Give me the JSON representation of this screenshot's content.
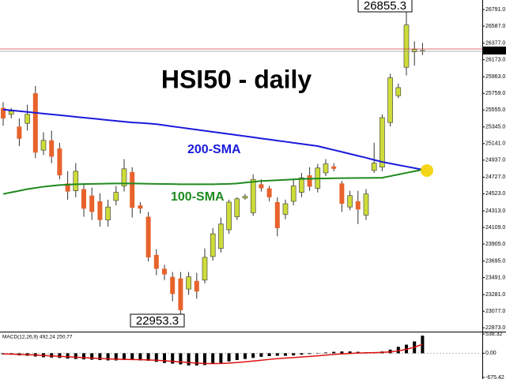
{
  "chart_data": {
    "type": "candlestick",
    "title": "HSI50 - daily",
    "up_color": "#cddc39",
    "down_color": "#e8622c",
    "open": [
      25580,
      25500,
      25350,
      25390,
      25760,
      25060,
      25180,
      25080,
      24650,
      24560,
      24580,
      24500,
      24430,
      24200,
      24440,
      24620,
      24790,
      24380,
      24240,
      23770,
      23600,
      23500,
      23480,
      23350,
      23450,
      23460,
      23750,
      23850,
      24080,
      24240,
      24470,
      24290,
      24640,
      24590,
      24420,
      24270,
      24430,
      24540,
      24750,
      24590,
      24780,
      24860,
      24650,
      24360,
      24430,
      24260,
      24810,
      24850,
      25400,
      25730,
      26080,
      26270,
      26280
    ],
    "high": [
      25650,
      25580,
      25450,
      25620,
      25850,
      25280,
      25300,
      25150,
      24800,
      24900,
      24650,
      24600,
      24530,
      24450,
      24620,
      24950,
      24850,
      24420,
      24300,
      23840,
      23650,
      23560,
      23560,
      23560,
      23550,
      23850,
      24100,
      24230,
      24450,
      24480,
      24520,
      24760,
      24700,
      24620,
      24480,
      24450,
      24700,
      24780,
      24850,
      24890,
      24950,
      24900,
      24680,
      24560,
      24560,
      24580,
      25150,
      25500,
      26000,
      25880,
      26855.3,
      26400,
      26380
    ],
    "low": [
      25360,
      25450,
      25110,
      25300,
      24960,
      25000,
      24900,
      24700,
      24450,
      24480,
      24240,
      24200,
      24120,
      24120,
      24380,
      24550,
      24230,
      24280,
      23690,
      23520,
      23460,
      23200,
      22953.3,
      23280,
      23230,
      23420,
      23700,
      23800,
      24030,
      24200,
      24450,
      24250,
      24550,
      24430,
      24000,
      24210,
      24380,
      24480,
      24560,
      24540,
      24740,
      24800,
      24300,
      24320,
      24150,
      24200,
      24780,
      24800,
      25350,
      25700,
      25980,
      26100,
      26230
    ],
    "close": [
      25450,
      25540,
      25200,
      25500,
      25030,
      25180,
      24980,
      24750,
      24550,
      24800,
      24340,
      24300,
      24200,
      24360,
      24540,
      24830,
      24350,
      24340,
      23740,
      23600,
      23530,
      23290,
      23090,
      23500,
      23320,
      23740,
      24030,
      24150,
      24420,
      24460,
      24490,
      24700,
      24590,
      24480,
      24100,
      24400,
      24620,
      24720,
      24610,
      24840,
      24890,
      24830,
      24400,
      24500,
      24330,
      24520,
      24900,
      25460,
      25950,
      25830,
      26600,
      26300,
      26286.3
    ],
    "series": [
      {
        "name": "200-SMA",
        "color": "#1a1adc",
        "values": [
          25560,
          25550,
          25540,
          25530,
          25520,
          25510,
          25500,
          25490,
          25480,
          25470,
          25460,
          25450,
          25440,
          25430,
          25420,
          25410,
          25400,
          25395,
          25388,
          25380,
          25366,
          25352,
          25339,
          25325,
          25312,
          25298,
          25285,
          25272,
          25258,
          25245,
          25231,
          25218,
          25204,
          25191,
          25177,
          25164,
          25150,
          25137,
          25123,
          25110,
          25086,
          25062,
          25038,
          25014,
          24990,
          24966,
          24940,
          24915,
          24896,
          24877,
          24858,
          24839,
          24820
        ]
      },
      {
        "name": "100-SMA",
        "color": "#1f8a1f",
        "values": [
          24520,
          24540,
          24560,
          24580,
          24595,
          24610,
          24620,
          24630,
          24635,
          24640,
          24642,
          24645,
          24646,
          24648,
          24650,
          24650,
          24650,
          24648,
          24646,
          24645,
          24643,
          24642,
          24640,
          24640,
          24640,
          24640,
          24640,
          24642,
          24645,
          24650,
          24660,
          24670,
          24680,
          24685,
          24690,
          24695,
          24700,
          24705,
          24708,
          24710,
          24712,
          24714,
          24715,
          24716,
          24717,
          24718,
          24719,
          24720,
          24740,
          24760,
          24780,
          24800,
          24820
        ]
      }
    ],
    "ylim": [
      22826,
      26908
    ],
    "yticks": [
      {
        "value": 26791,
        "label": "26791.0"
      },
      {
        "value": 26587,
        "label": "26587.0"
      },
      {
        "value": 26377,
        "label": "26377.0"
      },
      {
        "value": 26173,
        "label": "26173.0"
      },
      {
        "value": 25963,
        "label": "25963.0"
      },
      {
        "value": 25759,
        "label": "25759.0"
      },
      {
        "value": 25555,
        "label": "25555.0"
      },
      {
        "value": 25345,
        "label": "25345.0"
      },
      {
        "value": 25141,
        "label": "25141.0"
      },
      {
        "value": 24937,
        "label": "24937.0"
      },
      {
        "value": 24727,
        "label": "24727.0"
      },
      {
        "value": 24523,
        "label": "24523.0"
      },
      {
        "value": 24313,
        "label": "24313.0"
      },
      {
        "value": 24109,
        "label": "24109.0"
      },
      {
        "value": 23905,
        "label": "23905.0"
      },
      {
        "value": 23695,
        "label": "23695.0"
      },
      {
        "value": 23491,
        "label": "23491.0"
      },
      {
        "value": 23281,
        "label": "23281.0"
      },
      {
        "value": 23077,
        "label": "23077.0"
      },
      {
        "value": 22873,
        "label": "22873.0"
      }
    ],
    "macd": {
      "title": "MACD(12,26,9) 492.24 250.77",
      "color": "#000000",
      "signal_color": "#e01010",
      "histogram": [
        -30,
        -40,
        -60,
        -70,
        -90,
        -110,
        -120,
        -130,
        -150,
        -160,
        -170,
        -180,
        -190,
        -200,
        -200,
        -190,
        -190,
        -200,
        -210,
        -240,
        -270,
        -290,
        -310,
        -340,
        -340,
        -330,
        -300,
        -270,
        -230,
        -190,
        -160,
        -130,
        -100,
        -80,
        -70,
        -70,
        -60,
        -40,
        -20,
        0,
        20,
        40,
        50,
        50,
        40,
        30,
        30,
        50,
        100,
        180,
        240,
        330,
        492.24
      ],
      "signal": [
        -20,
        -25,
        -32,
        -40,
        -50,
        -62,
        -73,
        -85,
        -98,
        -110,
        -122,
        -134,
        -145,
        -156,
        -165,
        -170,
        -175,
        -180,
        -186,
        -196,
        -210,
        -226,
        -242,
        -260,
        -276,
        -286,
        -290,
        -286,
        -276,
        -260,
        -240,
        -218,
        -195,
        -172,
        -152,
        -135,
        -120,
        -104,
        -88,
        -70,
        -52,
        -34,
        -18,
        -5,
        5,
        12,
        18,
        24,
        40,
        68,
        110,
        170,
        250.77
      ],
      "ylim": [
        -675.42,
        538.32
      ],
      "yticks": [
        538.32,
        {
          "value": 0,
          "label": "0.00"
        },
        -675.42
      ]
    }
  }
}
